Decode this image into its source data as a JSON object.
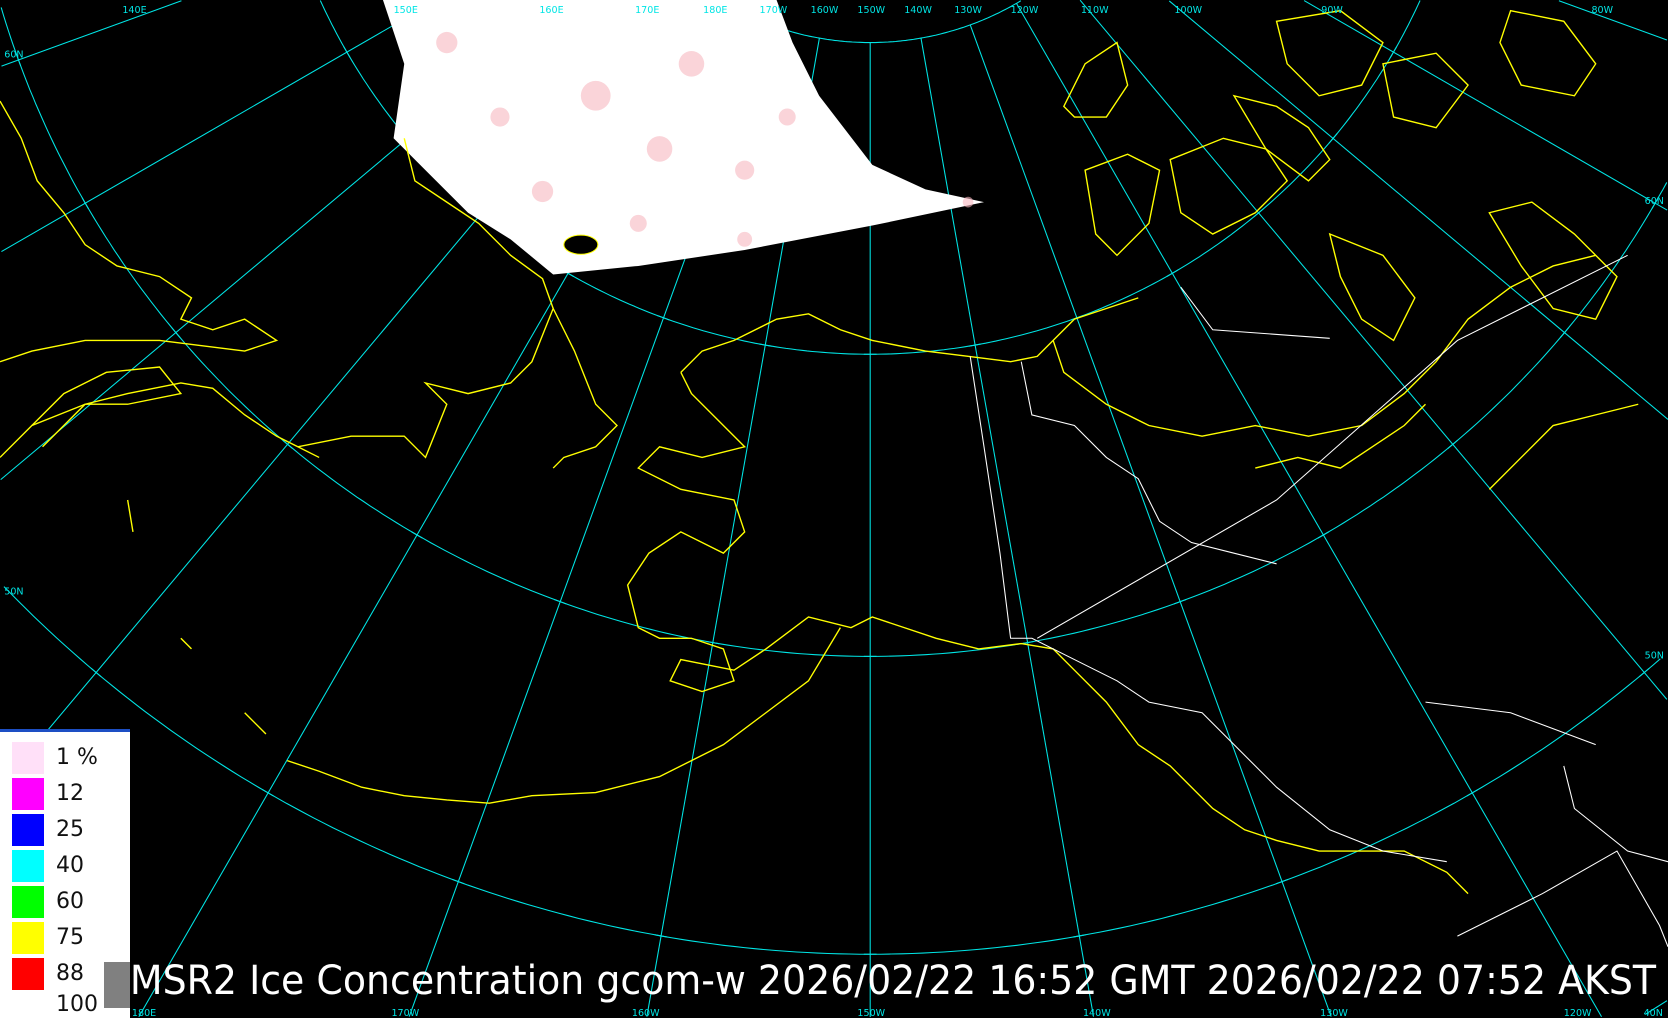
{
  "title": "AMSR2 Ice Concentration gcom-w 2026/02/22 16:52 GMT 2026/02/22 07:52 AKST",
  "graticule": {
    "top_labels": [
      "140E",
      "150E",
      "160E",
      "170E",
      "180E",
      "170W",
      "160W",
      "150W",
      "140W",
      "130W",
      "120W",
      "110W",
      "100W",
      "90W",
      "80W"
    ],
    "bottom_labels": [
      "180E",
      "170W",
      "160W",
      "150W",
      "140W",
      "130W",
      "120W",
      "40N"
    ],
    "left_labels": [
      "60N",
      "50N"
    ],
    "right_labels": [
      "60N",
      "50N"
    ],
    "color": "#00e5e5"
  },
  "legend": {
    "items": [
      {
        "label": "1 %",
        "color": "#ffe0f8"
      },
      {
        "label": "12",
        "color": "#ff00ff"
      },
      {
        "label": "25",
        "color": "#0000ff"
      },
      {
        "label": "40",
        "color": "#00ffff"
      },
      {
        "label": "60",
        "color": "#00ff00"
      },
      {
        "label": "75",
        "color": "#ffff00"
      },
      {
        "label": "88",
        "color": "#ff0000"
      }
    ],
    "last_label": "100"
  },
  "colors": {
    "coastline": "#ffff00",
    "border": "#ffffff",
    "background": "#000000",
    "ice": "#ffffff"
  }
}
